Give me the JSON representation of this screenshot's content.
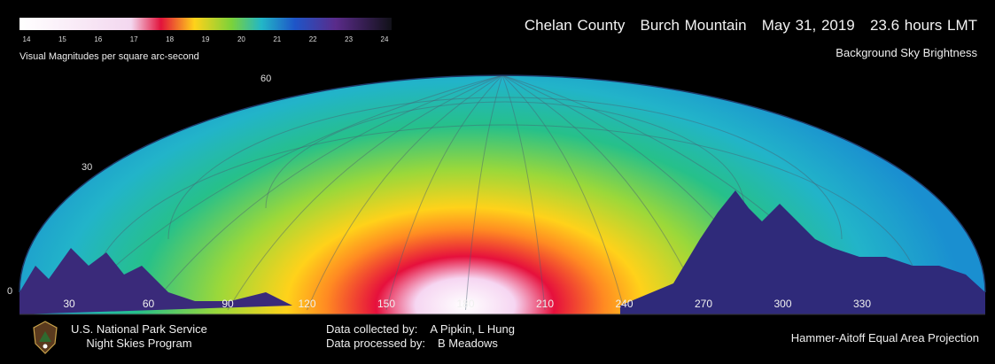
{
  "legend": {
    "ticks": [
      "14",
      "15",
      "16",
      "17",
      "18",
      "19",
      "20",
      "21",
      "22",
      "23",
      "24"
    ],
    "label": "Visual Magnitudes per square arc-second"
  },
  "header": {
    "county": "Chelan County",
    "site": "Burch Mountain",
    "date": "May 31, 2019",
    "time": "23.6 hours LMT",
    "subtitle": "Background Sky Brightness"
  },
  "altitude_labels": [
    "60",
    "30",
    "0"
  ],
  "azimuth_labels": [
    "30",
    "60",
    "90",
    "120",
    "150",
    "180",
    "210",
    "240",
    "270",
    "300",
    "330"
  ],
  "credits": {
    "org_line1": "U.S. National Park Service",
    "org_line2": "Night Skies Program",
    "collected_label": "Data collected by:",
    "collected_value": "A Pipkin, L Hung",
    "processed_label": "Data processed by:",
    "processed_value": "B Meadows",
    "projection": "Hammer-Aitoff Equal Area Projection"
  },
  "colors": {
    "background": "#000000",
    "brightest": "#ffffff",
    "bright": "#e0103c",
    "mid": "#ffd21a",
    "dim": "#19b6b8",
    "darkest": "#0a0a2a"
  }
}
